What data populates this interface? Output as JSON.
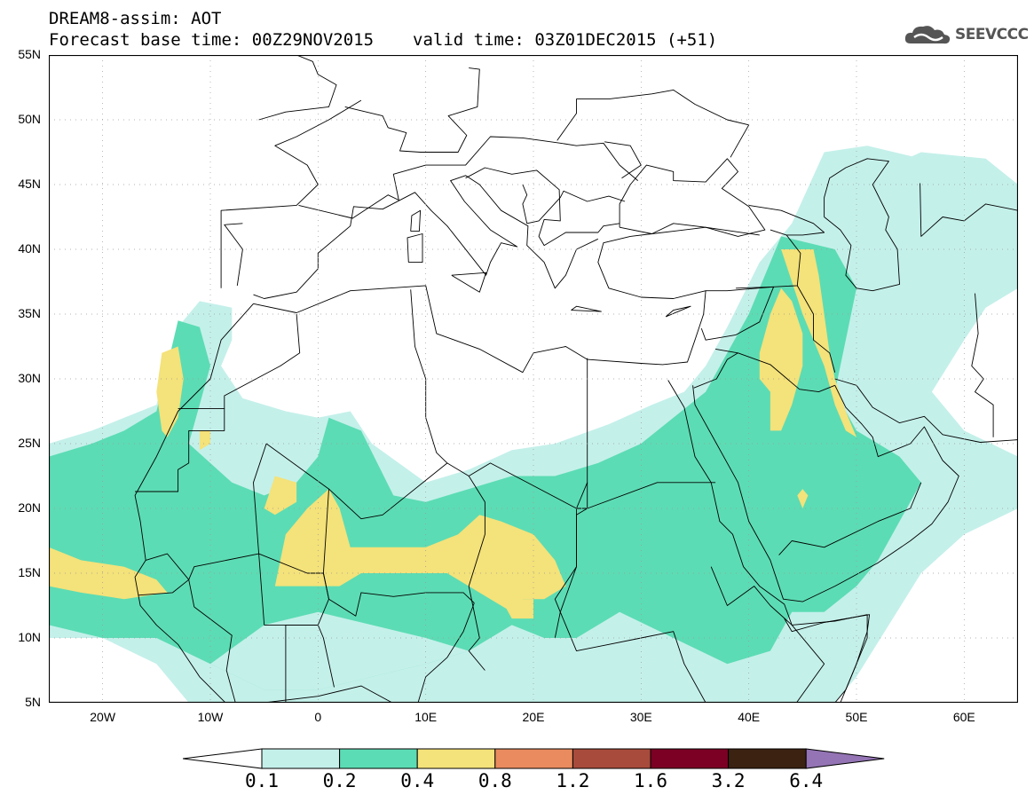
{
  "header": {
    "title_line1": "DREAM8-assim: AOT",
    "base_time": "Forecast base time: 00Z29NOV2015",
    "valid_time": "valid time: 03Z01DEC2015 (+51)"
  },
  "logo": {
    "text": "SEEVCCC",
    "icon": "cloud-icon"
  },
  "map": {
    "lon_range": [
      -25,
      65
    ],
    "lat_range": [
      5,
      55
    ],
    "lat_ticks": [
      {
        "value": 55,
        "label": "55N"
      },
      {
        "value": 50,
        "label": "50N"
      },
      {
        "value": 45,
        "label": "45N"
      },
      {
        "value": 40,
        "label": "40N"
      },
      {
        "value": 35,
        "label": "35N"
      },
      {
        "value": 30,
        "label": "30N"
      },
      {
        "value": 25,
        "label": "25N"
      },
      {
        "value": 20,
        "label": "20N"
      },
      {
        "value": 15,
        "label": "15N"
      },
      {
        "value": 10,
        "label": "10N"
      },
      {
        "value": 5,
        "label": "5N"
      }
    ],
    "lon_ticks": [
      {
        "value": -20,
        "label": "20W"
      },
      {
        "value": -10,
        "label": "10W"
      },
      {
        "value": 0,
        "label": "0"
      },
      {
        "value": 10,
        "label": "10E"
      },
      {
        "value": 20,
        "label": "20E"
      },
      {
        "value": 30,
        "label": "30E"
      },
      {
        "value": 40,
        "label": "40E"
      },
      {
        "value": 50,
        "label": "50E"
      },
      {
        "value": 60,
        "label": "60E"
      }
    ],
    "grid": true,
    "colors": {
      "c01": "#c4f0ea",
      "c02": "#5cdcb4",
      "c04": "#f4e27a",
      "coast": "#000000"
    }
  },
  "colorbar": {
    "bins": [
      "#c4f0ea",
      "#5cdcb4",
      "#f4e27a",
      "#e98b5e",
      "#a84b3c",
      "#7b0023",
      "#3b2211"
    ],
    "under_color": "#ffffff",
    "over_color": "#9474b4",
    "labels": [
      "0.1",
      "0.2",
      "0.4",
      "0.8",
      "1.2",
      "1.6",
      "3.2",
      "6.4"
    ]
  }
}
